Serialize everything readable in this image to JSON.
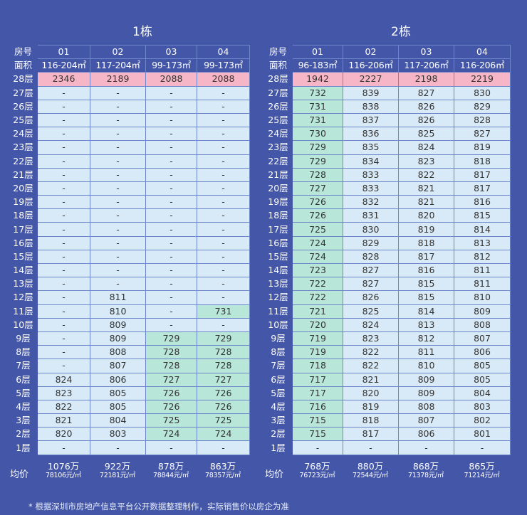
{
  "footnote": "* 根据深圳市房地产信息平台公开数据整理制作，实际销售价以房企为准",
  "row_label_header": "房号",
  "area_label": "面积",
  "avg_label": "均价",
  "buildings": [
    {
      "title": "1栋",
      "units": [
        "01",
        "02",
        "03",
        "04"
      ],
      "areas": [
        "116-204㎡",
        "117-204㎡",
        "99-173㎡",
        "99-173㎡"
      ],
      "averages": [
        {
          "total": "1076万",
          "unit_price": "78106元/㎡"
        },
        {
          "total": "922万",
          "unit_price": "72181元/㎡"
        },
        {
          "total": "878万",
          "unit_price": "78844元/㎡"
        },
        {
          "total": "863万",
          "unit_price": "78357元/㎡"
        }
      ],
      "floors": [
        {
          "floor": "28层",
          "values": [
            "2346",
            "2189",
            "2088",
            "2088"
          ],
          "highlight": "pink"
        },
        {
          "floor": "27层",
          "values": [
            "-",
            "-",
            "-",
            "-"
          ]
        },
        {
          "floor": "26层",
          "values": [
            "-",
            "-",
            "-",
            "-"
          ]
        },
        {
          "floor": "25层",
          "values": [
            "-",
            "-",
            "-",
            "-"
          ]
        },
        {
          "floor": "24层",
          "values": [
            "-",
            "-",
            "-",
            "-"
          ]
        },
        {
          "floor": "23层",
          "values": [
            "-",
            "-",
            "-",
            "-"
          ]
        },
        {
          "floor": "22层",
          "values": [
            "-",
            "-",
            "-",
            "-"
          ]
        },
        {
          "floor": "21层",
          "values": [
            "-",
            "-",
            "-",
            "-"
          ]
        },
        {
          "floor": "20层",
          "values": [
            "-",
            "-",
            "-",
            "-"
          ]
        },
        {
          "floor": "19层",
          "values": [
            "-",
            "-",
            "-",
            "-"
          ]
        },
        {
          "floor": "18层",
          "values": [
            "-",
            "-",
            "-",
            "-"
          ]
        },
        {
          "floor": "17层",
          "values": [
            "-",
            "-",
            "-",
            "-"
          ]
        },
        {
          "floor": "16层",
          "values": [
            "-",
            "-",
            "-",
            "-"
          ]
        },
        {
          "floor": "15层",
          "values": [
            "-",
            "-",
            "-",
            "-"
          ]
        },
        {
          "floor": "14层",
          "values": [
            "-",
            "-",
            "-",
            "-"
          ]
        },
        {
          "floor": "13层",
          "values": [
            "-",
            "-",
            "-",
            "-"
          ]
        },
        {
          "floor": "12层",
          "values": [
            "-",
            "811",
            "-",
            "-"
          ]
        },
        {
          "floor": "11层",
          "values": [
            "-",
            "810",
            "-",
            "731"
          ],
          "green": [
            3
          ]
        },
        {
          "floor": "10层",
          "values": [
            "-",
            "809",
            "-",
            "-"
          ]
        },
        {
          "floor": "9层",
          "values": [
            "-",
            "809",
            "729",
            "729"
          ],
          "green": [
            2,
            3
          ]
        },
        {
          "floor": "8层",
          "values": [
            "-",
            "808",
            "728",
            "728"
          ],
          "green": [
            2,
            3
          ]
        },
        {
          "floor": "7层",
          "values": [
            "-",
            "807",
            "728",
            "728"
          ],
          "green": [
            2,
            3
          ]
        },
        {
          "floor": "6层",
          "values": [
            "824",
            "806",
            "727",
            "727"
          ],
          "green": [
            2,
            3
          ]
        },
        {
          "floor": "5层",
          "values": [
            "823",
            "805",
            "726",
            "726"
          ],
          "green": [
            2,
            3
          ]
        },
        {
          "floor": "4层",
          "values": [
            "822",
            "805",
            "726",
            "726"
          ],
          "green": [
            2,
            3
          ]
        },
        {
          "floor": "3层",
          "values": [
            "821",
            "804",
            "725",
            "725"
          ],
          "green": [
            2,
            3
          ]
        },
        {
          "floor": "2层",
          "values": [
            "820",
            "803",
            "724",
            "724"
          ],
          "green": [
            2,
            3
          ]
        },
        {
          "floor": "1层",
          "values": [
            "-",
            "-",
            "-",
            "-"
          ]
        }
      ]
    },
    {
      "title": "2栋",
      "units": [
        "01",
        "02",
        "03",
        "04"
      ],
      "areas": [
        "96-183㎡",
        "116-206㎡",
        "117-206㎡",
        "116-206㎡"
      ],
      "averages": [
        {
          "total": "768万",
          "unit_price": "76723元/㎡"
        },
        {
          "total": "880万",
          "unit_price": "72544元/㎡"
        },
        {
          "total": "868万",
          "unit_price": "71378元/㎡"
        },
        {
          "total": "865万",
          "unit_price": "71214元/㎡"
        }
      ],
      "floors": [
        {
          "floor": "28层",
          "values": [
            "1942",
            "2227",
            "2198",
            "2219"
          ],
          "highlight": "pink"
        },
        {
          "floor": "27层",
          "values": [
            "732",
            "839",
            "827",
            "830"
          ],
          "green": [
            0
          ]
        },
        {
          "floor": "26层",
          "values": [
            "731",
            "838",
            "826",
            "829"
          ],
          "green": [
            0
          ]
        },
        {
          "floor": "25层",
          "values": [
            "731",
            "837",
            "826",
            "828"
          ],
          "green": [
            0
          ]
        },
        {
          "floor": "24层",
          "values": [
            "730",
            "836",
            "825",
            "827"
          ],
          "green": [
            0
          ]
        },
        {
          "floor": "23层",
          "values": [
            "729",
            "835",
            "824",
            "819"
          ],
          "green": [
            0
          ]
        },
        {
          "floor": "22层",
          "values": [
            "729",
            "834",
            "823",
            "818"
          ],
          "green": [
            0
          ]
        },
        {
          "floor": "21层",
          "values": [
            "728",
            "833",
            "822",
            "817"
          ],
          "green": [
            0
          ]
        },
        {
          "floor": "20层",
          "values": [
            "727",
            "833",
            "821",
            "817"
          ],
          "green": [
            0
          ]
        },
        {
          "floor": "19层",
          "values": [
            "726",
            "832",
            "821",
            "816"
          ],
          "green": [
            0
          ]
        },
        {
          "floor": "18层",
          "values": [
            "726",
            "831",
            "820",
            "815"
          ],
          "green": [
            0
          ]
        },
        {
          "floor": "17层",
          "values": [
            "725",
            "830",
            "819",
            "814"
          ],
          "green": [
            0
          ]
        },
        {
          "floor": "16层",
          "values": [
            "724",
            "829",
            "818",
            "813"
          ],
          "green": [
            0
          ]
        },
        {
          "floor": "15层",
          "values": [
            "724",
            "828",
            "817",
            "812"
          ],
          "green": [
            0
          ]
        },
        {
          "floor": "14层",
          "values": [
            "723",
            "827",
            "816",
            "811"
          ],
          "green": [
            0
          ]
        },
        {
          "floor": "13层",
          "values": [
            "722",
            "827",
            "815",
            "811"
          ],
          "green": [
            0
          ]
        },
        {
          "floor": "12层",
          "values": [
            "722",
            "826",
            "815",
            "810"
          ],
          "green": [
            0
          ]
        },
        {
          "floor": "11层",
          "values": [
            "721",
            "825",
            "814",
            "809"
          ],
          "green": [
            0
          ]
        },
        {
          "floor": "10层",
          "values": [
            "720",
            "824",
            "813",
            "808"
          ],
          "green": [
            0
          ]
        },
        {
          "floor": "9层",
          "values": [
            "719",
            "823",
            "812",
            "807"
          ],
          "green": [
            0
          ]
        },
        {
          "floor": "8层",
          "values": [
            "719",
            "822",
            "811",
            "806"
          ],
          "green": [
            0
          ]
        },
        {
          "floor": "7层",
          "values": [
            "718",
            "822",
            "810",
            "805"
          ],
          "green": [
            0
          ]
        },
        {
          "floor": "6层",
          "values": [
            "717",
            "821",
            "809",
            "805"
          ],
          "green": [
            0
          ]
        },
        {
          "floor": "5层",
          "values": [
            "717",
            "820",
            "809",
            "804"
          ],
          "green": [
            0
          ]
        },
        {
          "floor": "4层",
          "values": [
            "716",
            "819",
            "808",
            "803"
          ],
          "green": [
            0
          ]
        },
        {
          "floor": "3层",
          "values": [
            "715",
            "818",
            "807",
            "802"
          ],
          "green": [
            0
          ]
        },
        {
          "floor": "2层",
          "values": [
            "715",
            "817",
            "806",
            "801"
          ],
          "green": [
            0
          ]
        },
        {
          "floor": "1层",
          "values": [
            "-",
            "-",
            "-",
            "-"
          ]
        }
      ]
    }
  ]
}
